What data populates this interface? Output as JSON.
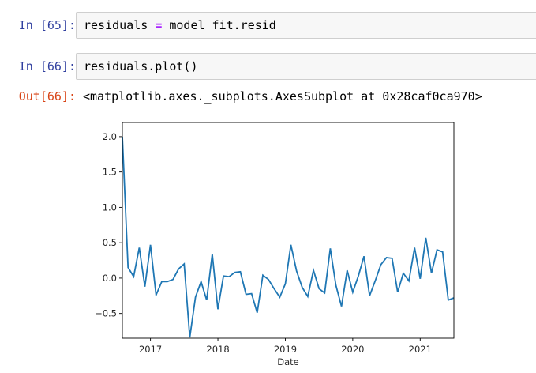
{
  "cells": [
    {
      "prompt": "In [65]:",
      "code": {
        "var": "residuals",
        "op": "=",
        "rest": "model_fit.resid"
      }
    },
    {
      "prompt": "In [66]:",
      "code_text": "residuals.plot()",
      "out_prompt": "Out[66]:",
      "out_text": "<matplotlib.axes._subplots.AxesSubplot at 0x28caf0ca970>"
    }
  ],
  "chart_data": {
    "type": "line",
    "xlabel": "Date",
    "ylabel": "",
    "title": "",
    "x_tick_labels": [
      "2017",
      "2018",
      "2019",
      "2020",
      "2021"
    ],
    "x_tick_dates": [
      2017.0,
      2018.0,
      2019.0,
      2020.0,
      2021.0
    ],
    "y_tick_labels": [
      "2.0",
      "1.5",
      "1.0",
      "0.5",
      "0.0",
      "−0.5"
    ],
    "y_tick_values": [
      2.0,
      1.5,
      1.0,
      0.5,
      0.0,
      -0.5
    ],
    "xlim": [
      2016.583,
      2021.5
    ],
    "ylim": [
      -0.85,
      2.2
    ],
    "line_color": "#1f77b4",
    "grid": false,
    "series": [
      {
        "x": [
          2016.583,
          2016.667,
          2016.75,
          2016.833,
          2016.917,
          2017.0,
          2017.083,
          2017.167,
          2017.25,
          2017.333,
          2017.417,
          2017.5,
          2017.583,
          2017.667,
          2017.75,
          2017.833,
          2017.917,
          2018.0,
          2018.083,
          2018.167,
          2018.25,
          2018.333,
          2018.417,
          2018.5,
          2018.583,
          2018.667,
          2018.75,
          2018.833,
          2018.917,
          2019.0,
          2019.083,
          2019.167,
          2019.25,
          2019.333,
          2019.417,
          2019.5,
          2019.583,
          2019.667,
          2019.75,
          2019.833,
          2019.917,
          2020.0,
          2020.083,
          2020.167,
          2020.25,
          2020.333,
          2020.417,
          2020.5,
          2020.583,
          2020.667,
          2020.75,
          2020.833,
          2020.917,
          2021.0,
          2021.083,
          2021.167,
          2021.25,
          2021.333,
          2021.417,
          2021.5
        ],
        "values": [
          2.0,
          0.15,
          0.02,
          0.43,
          -0.12,
          0.47,
          -0.24,
          -0.05,
          -0.05,
          -0.02,
          0.13,
          0.2,
          -0.84,
          -0.27,
          -0.05,
          -0.31,
          0.34,
          -0.44,
          0.03,
          0.02,
          0.08,
          0.09,
          -0.23,
          -0.22,
          -0.49,
          0.04,
          -0.02,
          -0.15,
          -0.27,
          -0.08,
          0.47,
          0.1,
          -0.13,
          -0.26,
          0.11,
          -0.15,
          -0.21,
          0.42,
          -0.1,
          -0.4,
          0.11,
          -0.2,
          0.03,
          0.31,
          -0.25,
          -0.04,
          0.19,
          0.29,
          0.28,
          -0.2,
          0.07,
          -0.04,
          0.43,
          -0.01,
          0.57,
          0.07,
          0.4,
          0.37,
          -0.31,
          -0.28
        ]
      }
    ]
  }
}
